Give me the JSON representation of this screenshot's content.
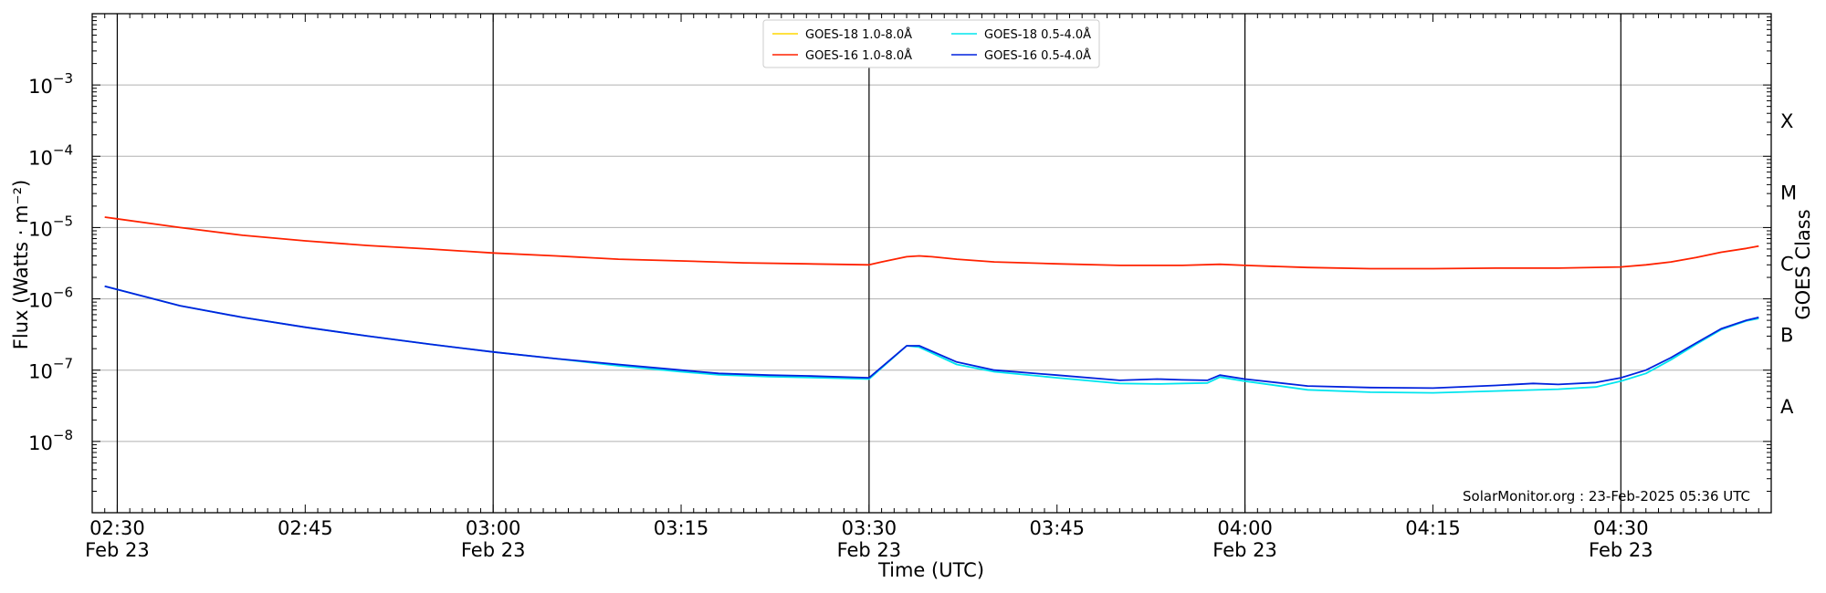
{
  "chart_data": {
    "type": "line",
    "xlabel": "Time (UTC)",
    "ylabel": "Flux (Watts · m⁻²)",
    "ylabel_right": "GOES Class",
    "y_scale": "log",
    "ylim": [
      1e-09,
      0.01
    ],
    "xlim": [
      "2025-02-23T02:28",
      "2025-02-23T04:42"
    ],
    "grid": "y-major",
    "legend": "top-center",
    "credit": "SolarMonitor.org : 23-Feb-2025 05:36 UTC",
    "x_ticks": [
      {
        "value": "2025-02-23T02:30",
        "label": "02:30",
        "sublabel": "Feb 23"
      },
      {
        "value": "2025-02-23T02:45",
        "label": "02:45",
        "sublabel": ""
      },
      {
        "value": "2025-02-23T03:00",
        "label": "03:00",
        "sublabel": "Feb 23"
      },
      {
        "value": "2025-02-23T03:15",
        "label": "03:15",
        "sublabel": ""
      },
      {
        "value": "2025-02-23T03:30",
        "label": "03:30",
        "sublabel": "Feb 23"
      },
      {
        "value": "2025-02-23T03:45",
        "label": "03:45",
        "sublabel": ""
      },
      {
        "value": "2025-02-23T04:00",
        "label": "04:00",
        "sublabel": "Feb 23"
      },
      {
        "value": "2025-02-23T04:15",
        "label": "04:15",
        "sublabel": ""
      },
      {
        "value": "2025-02-23T04:30",
        "label": "04:30",
        "sublabel": "Feb 23"
      }
    ],
    "vlines": [
      "2025-02-23T02:30",
      "2025-02-23T03:00",
      "2025-02-23T03:30",
      "2025-02-23T04:00",
      "2025-02-23T04:30"
    ],
    "y_ticks": [
      {
        "value": 1e-08,
        "mantissa": "10",
        "exp": "−8"
      },
      {
        "value": 1e-07,
        "mantissa": "10",
        "exp": "−7"
      },
      {
        "value": 1e-06,
        "mantissa": "10",
        "exp": "−6"
      },
      {
        "value": 1e-05,
        "mantissa": "10",
        "exp": "−5"
      },
      {
        "value": 0.0001,
        "mantissa": "10",
        "exp": "−4"
      },
      {
        "value": 0.001,
        "mantissa": "10",
        "exp": "−3"
      }
    ],
    "classes": [
      {
        "label": "A",
        "value": 3.16e-08
      },
      {
        "label": "B",
        "value": 3.16e-07
      },
      {
        "label": "C",
        "value": 3.16e-06
      },
      {
        "label": "M",
        "value": 3.16e-05
      },
      {
        "label": "X",
        "value": 0.000316
      }
    ],
    "series": [
      {
        "name": "GOES-18 1.0-8.0Å",
        "color": "#FFD700",
        "x": [],
        "y": []
      },
      {
        "name": "GOES-18 0.5-4.0Å",
        "color": "#00E5EE",
        "x": [
          "2025-02-23T02:29",
          "2025-02-23T02:35",
          "2025-02-23T02:40",
          "2025-02-23T02:45",
          "2025-02-23T02:50",
          "2025-02-23T02:55",
          "2025-02-23T03:00",
          "2025-02-23T03:05",
          "2025-02-23T03:10",
          "2025-02-23T03:15",
          "2025-02-23T03:18",
          "2025-02-23T03:22",
          "2025-02-23T03:25",
          "2025-02-23T03:30",
          "2025-02-23T03:33",
          "2025-02-23T03:34",
          "2025-02-23T03:37",
          "2025-02-23T03:40",
          "2025-02-23T03:45",
          "2025-02-23T03:50",
          "2025-02-23T03:53",
          "2025-02-23T03:55",
          "2025-02-23T03:57",
          "2025-02-23T03:58",
          "2025-02-23T04:00",
          "2025-02-23T04:05",
          "2025-02-23T04:10",
          "2025-02-23T04:15",
          "2025-02-23T04:20",
          "2025-02-23T04:25",
          "2025-02-23T04:28",
          "2025-02-23T04:30",
          "2025-02-23T04:32",
          "2025-02-23T04:34",
          "2025-02-23T04:36",
          "2025-02-23T04:38",
          "2025-02-23T04:40",
          "2025-02-23T04:41"
        ],
        "y": [
          1.5e-06,
          8e-07,
          5.5e-07,
          4e-07,
          3e-07,
          2.3e-07,
          1.8e-07,
          1.45e-07,
          1.15e-07,
          9.5e-08,
          8.6e-08,
          8.1e-08,
          7.9e-08,
          7.5e-08,
          2.2e-07,
          2.1e-07,
          1.2e-07,
          9.5e-08,
          7.8e-08,
          6.5e-08,
          6.4e-08,
          6.5e-08,
          6.6e-08,
          8e-08,
          7e-08,
          5.3e-08,
          4.9e-08,
          4.8e-08,
          5.1e-08,
          5.4e-08,
          5.8e-08,
          7e-08,
          9e-08,
          1.4e-07,
          2.3e-07,
          3.7e-07,
          4.9e-07,
          5.3e-07
        ]
      },
      {
        "name": "GOES-16 1.0-8.0Å",
        "color": "#FF2200",
        "x": [
          "2025-02-23T02:29",
          "2025-02-23T02:35",
          "2025-02-23T02:40",
          "2025-02-23T02:45",
          "2025-02-23T02:50",
          "2025-02-23T02:55",
          "2025-02-23T03:00",
          "2025-02-23T03:05",
          "2025-02-23T03:10",
          "2025-02-23T03:15",
          "2025-02-23T03:20",
          "2025-02-23T03:25",
          "2025-02-23T03:30",
          "2025-02-23T03:31",
          "2025-02-23T03:33",
          "2025-02-23T03:34",
          "2025-02-23T03:35",
          "2025-02-23T03:37",
          "2025-02-23T03:40",
          "2025-02-23T03:45",
          "2025-02-23T03:50",
          "2025-02-23T03:55",
          "2025-02-23T03:58",
          "2025-02-23T04:00",
          "2025-02-23T04:05",
          "2025-02-23T04:10",
          "2025-02-23T04:15",
          "2025-02-23T04:20",
          "2025-02-23T04:25",
          "2025-02-23T04:30",
          "2025-02-23T04:32",
          "2025-02-23T04:34",
          "2025-02-23T04:36",
          "2025-02-23T04:38",
          "2025-02-23T04:40",
          "2025-02-23T04:41"
        ],
        "y": [
          1.4e-05,
          1e-05,
          7.8e-06,
          6.5e-06,
          5.6e-06,
          5e-06,
          4.4e-06,
          4e-06,
          3.6e-06,
          3.4e-06,
          3.2e-06,
          3.1e-06,
          3e-06,
          3.3e-06,
          3.9e-06,
          4e-06,
          3.9e-06,
          3.6e-06,
          3.3e-06,
          3.1e-06,
          2.95e-06,
          2.95e-06,
          3.05e-06,
          2.95e-06,
          2.75e-06,
          2.65e-06,
          2.65e-06,
          2.7e-06,
          2.7e-06,
          2.8e-06,
          3e-06,
          3.3e-06,
          3.8e-06,
          4.5e-06,
          5.1e-06,
          5.5e-06
        ]
      },
      {
        "name": "GOES-16 0.5-4.0Å",
        "color": "#0022DD",
        "x": [
          "2025-02-23T02:29",
          "2025-02-23T02:35",
          "2025-02-23T02:40",
          "2025-02-23T02:45",
          "2025-02-23T02:50",
          "2025-02-23T02:55",
          "2025-02-23T03:00",
          "2025-02-23T03:05",
          "2025-02-23T03:10",
          "2025-02-23T03:15",
          "2025-02-23T03:18",
          "2025-02-23T03:22",
          "2025-02-23T03:25",
          "2025-02-23T03:30",
          "2025-02-23T03:33",
          "2025-02-23T03:34",
          "2025-02-23T03:37",
          "2025-02-23T03:40",
          "2025-02-23T03:45",
          "2025-02-23T03:50",
          "2025-02-23T03:53",
          "2025-02-23T03:55",
          "2025-02-23T03:57",
          "2025-02-23T03:58",
          "2025-02-23T04:00",
          "2025-02-23T04:05",
          "2025-02-23T04:10",
          "2025-02-23T04:15",
          "2025-02-23T04:20",
          "2025-02-23T04:23",
          "2025-02-23T04:25",
          "2025-02-23T04:28",
          "2025-02-23T04:30",
          "2025-02-23T04:32",
          "2025-02-23T04:34",
          "2025-02-23T04:36",
          "2025-02-23T04:38",
          "2025-02-23T04:40",
          "2025-02-23T04:41"
        ],
        "y": [
          1.5e-06,
          8e-07,
          5.5e-07,
          4e-07,
          3e-07,
          2.3e-07,
          1.8e-07,
          1.45e-07,
          1.2e-07,
          1e-07,
          9e-08,
          8.5e-08,
          8.3e-08,
          7.8e-08,
          2.2e-07,
          2.2e-07,
          1.3e-07,
          1e-07,
          8.5e-08,
          7.2e-08,
          7.5e-08,
          7.3e-08,
          7.2e-08,
          8.5e-08,
          7.5e-08,
          6e-08,
          5.7e-08,
          5.6e-08,
          6.1e-08,
          6.5e-08,
          6.3e-08,
          6.7e-08,
          7.8e-08,
          1e-07,
          1.5e-07,
          2.4e-07,
          3.8e-07,
          5e-07,
          5.5e-07
        ]
      }
    ]
  }
}
